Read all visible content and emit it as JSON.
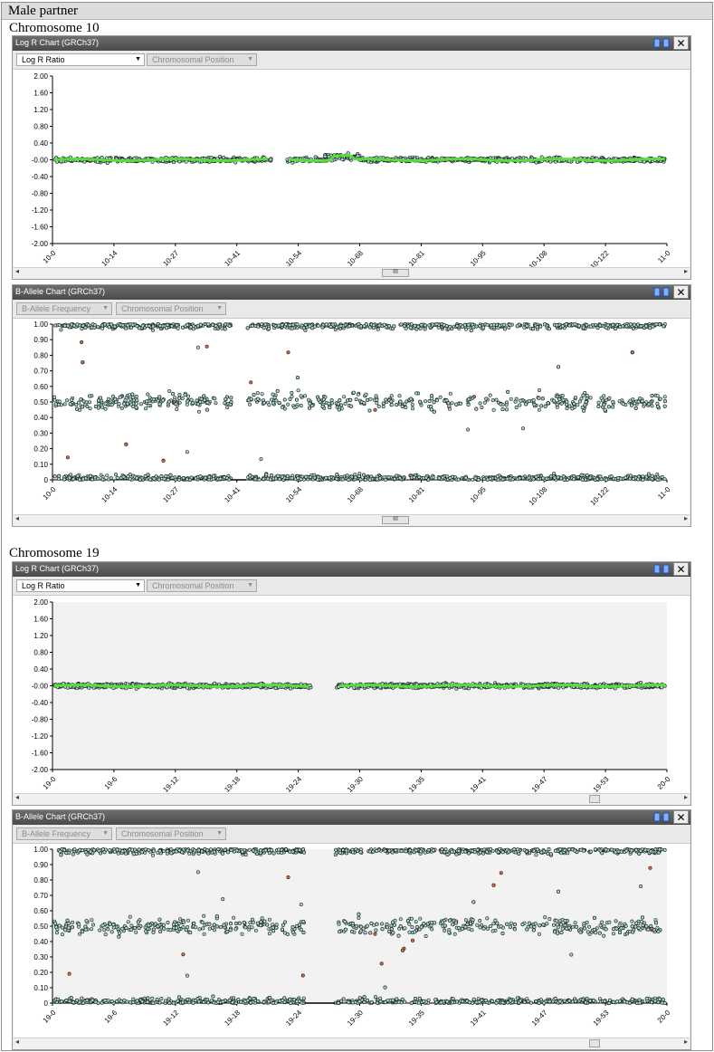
{
  "heading": "Male partner",
  "colors": {
    "point_fill": "#a6d8d0",
    "point_stroke": "#1a1a1a",
    "trend": "#57e035",
    "outlier": "#e06a3a"
  },
  "toolbar": {
    "logr_select": "Log R Ratio",
    "baf_select": "B-Allele Frequency",
    "position_select": "Chromosomal Position"
  },
  "sections": [
    {
      "label": "Chromosome 10",
      "logr_title": "Log R Chart (GRCh37)",
      "baf_title": "B-Allele Chart (GRCh37)",
      "scroll_thumb_label": "III"
    },
    {
      "label": "Chromosome 19",
      "logr_title": "Log R Chart (GRCh37)",
      "baf_title": "B-Allele Chart (GRCh37)",
      "scroll_thumb_label": ""
    }
  ],
  "chart_data": [
    {
      "type": "scatter",
      "name": "chr10-logr",
      "title": "Log R Chart (GRCh37)",
      "ylim": [
        -2,
        2
      ],
      "yticks": [
        "2.00",
        "1.60",
        "1.20",
        "0.80",
        "0.40",
        "-0.00",
        "-0.40",
        "-0.80",
        "-1.20",
        "-1.60",
        "-2.00"
      ],
      "xticks": [
        "10-0",
        "10-14",
        "10-27",
        "10-41",
        "10-54",
        "10-68",
        "10-81",
        "10-95",
        "10-108",
        "10-122",
        "11-0"
      ],
      "baseline": 0.0,
      "gaps": [
        [
          0.355,
          0.38
        ]
      ]
    },
    {
      "type": "scatter",
      "name": "chr10-baf",
      "title": "B-Allele Chart (GRCh37)",
      "ylim": [
        0,
        1
      ],
      "yticks": [
        "1.00",
        "0.90",
        "0.80",
        "0.70",
        "0.60",
        "0.50",
        "0.40",
        "0.30",
        "0.20",
        "0.10",
        "0"
      ],
      "xticks": [
        "10-0",
        "10-14",
        "10-27",
        "10-41",
        "10-54",
        "10-68",
        "10-81",
        "10-95",
        "10-108",
        "10-122",
        "11-0"
      ],
      "gaps": [
        [
          0.29,
          0.315
        ]
      ]
    },
    {
      "type": "scatter",
      "name": "chr19-logr",
      "title": "Log R Chart (GRCh37)",
      "ylim": [
        -2,
        2
      ],
      "yticks": [
        "2.00",
        "1.60",
        "1.20",
        "0.80",
        "0.40",
        "-0.00",
        "-0.40",
        "-0.80",
        "-1.20",
        "-1.60",
        "-2.00"
      ],
      "xticks": [
        "19-0",
        "19-6",
        "19-12",
        "19-18",
        "19-24",
        "19-30",
        "19-35",
        "19-41",
        "19-47",
        "19-53",
        "20-0"
      ],
      "baseline": 0.0,
      "gaps": [
        [
          0.42,
          0.46
        ]
      ]
    },
    {
      "type": "scatter",
      "name": "chr19-baf",
      "title": "B-Allele Chart (GRCh37)",
      "ylim": [
        0,
        1
      ],
      "yticks": [
        "1.00",
        "0.90",
        "0.80",
        "0.70",
        "0.60",
        "0.50",
        "0.40",
        "0.30",
        "0.20",
        "0.10",
        "0"
      ],
      "xticks": [
        "19-0",
        "19-6",
        "19-12",
        "19-18",
        "19-24",
        "19-30",
        "19-35",
        "19-41",
        "19-47",
        "19-53",
        "20-0"
      ],
      "gaps": [
        [
          0.41,
          0.46
        ]
      ]
    }
  ]
}
